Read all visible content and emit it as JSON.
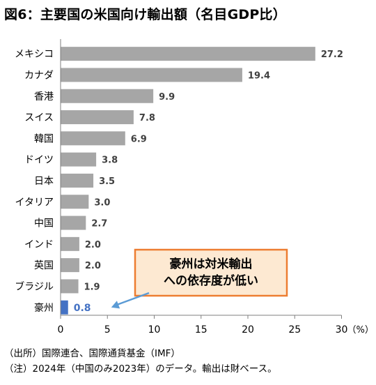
{
  "title": "図6：主要国の米国向け輸出額（名目GDP比）",
  "notes": {
    "source": "（出所）国際連合、国際通貨基金（IMF）",
    "remark": "（注）2024年（中国のみ2023年）のデータ。輸出は財ベース。"
  },
  "colors": {
    "bar_default": "#a6a6a6",
    "bar_highlight": "#4472c4",
    "label_highlight": "#4472c4",
    "callout_fill": "#fde9d2",
    "callout_border": "#ed7d31",
    "arrow": "#5b9bd5"
  },
  "chart_data": {
    "type": "bar",
    "orientation": "horizontal",
    "categories": [
      "メキシコ",
      "カナダ",
      "香港",
      "スイス",
      "韓国",
      "ドイツ",
      "日本",
      "イタリア",
      "中国",
      "インド",
      "英国",
      "ブラジル",
      "豪州"
    ],
    "values": [
      27.2,
      19.4,
      9.9,
      7.8,
      6.9,
      3.8,
      3.5,
      3.0,
      2.7,
      2.0,
      2.0,
      1.9,
      0.8
    ],
    "value_labels": [
      "27.2",
      "19.4",
      "9.9",
      "7.8",
      "6.9",
      "3.8",
      "3.5",
      "3.0",
      "2.7",
      "2.0",
      "2.0",
      "1.9",
      "0.8"
    ],
    "highlight": "豪州",
    "xlim": [
      0,
      30
    ],
    "xticks": [
      0,
      5,
      10,
      15,
      20,
      25,
      30
    ],
    "xtick_labels": [
      "0",
      "5",
      "10",
      "15",
      "20",
      "25",
      "30"
    ],
    "unit": "（%）",
    "grid": false,
    "annotation": {
      "lines": [
        "豪州は対米輸出",
        "への依存度が低い"
      ],
      "points_to": "豪州"
    }
  }
}
